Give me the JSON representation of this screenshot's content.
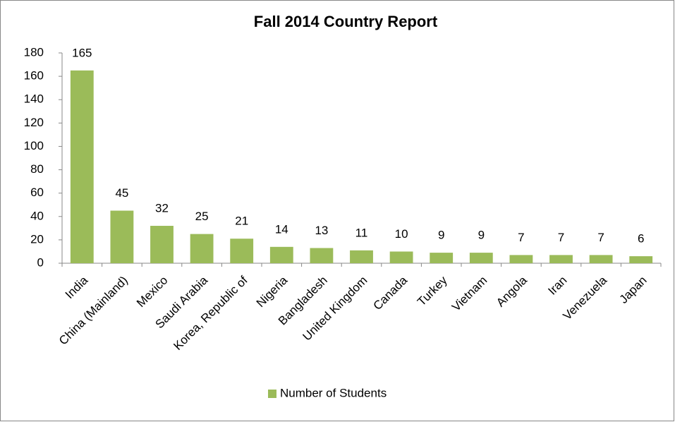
{
  "chart_data": {
    "type": "bar",
    "title": "Fall 2014 Country Report",
    "categories": [
      "India",
      "China (Mainland)",
      "Mexico",
      "Saudi Arabia",
      "Korea, Republic of",
      "Nigeria",
      "Bangladesh",
      "United Kingdom",
      "Canada",
      "Turkey",
      "Vietnam",
      "Angola",
      "Iran",
      "Venezuela",
      "Japan"
    ],
    "series": [
      {
        "name": "Number of Students",
        "color": "#9bbb59",
        "values": [
          165,
          45,
          32,
          25,
          21,
          14,
          13,
          11,
          10,
          9,
          9,
          7,
          7,
          7,
          6
        ]
      }
    ],
    "ylim": [
      0,
      180
    ],
    "yticks": [
      0,
      20,
      40,
      60,
      80,
      100,
      120,
      140,
      160,
      180
    ],
    "grid": false,
    "legend": "bottom"
  }
}
